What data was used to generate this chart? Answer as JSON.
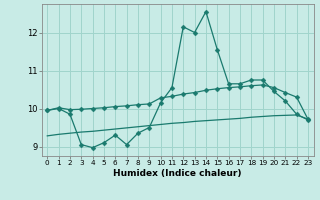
{
  "xlabel": "Humidex (Indice chaleur)",
  "background_color": "#c8ebe6",
  "grid_color": "#a0d4cc",
  "line_color": "#1a7a6e",
  "xlim": [
    -0.5,
    23.5
  ],
  "ylim": [
    8.75,
    12.75
  ],
  "xticks": [
    0,
    1,
    2,
    3,
    4,
    5,
    6,
    7,
    8,
    9,
    10,
    11,
    12,
    13,
    14,
    15,
    16,
    17,
    18,
    19,
    20,
    21,
    22,
    23
  ],
  "yticks": [
    9,
    10,
    11,
    12
  ],
  "line1_x": [
    0,
    1,
    2,
    3,
    4,
    5,
    6,
    7,
    8,
    9,
    10,
    11,
    12,
    13,
    14,
    15,
    16,
    17,
    18,
    19,
    20,
    21,
    22,
    23
  ],
  "line1_y": [
    9.95,
    10.0,
    9.85,
    9.05,
    8.97,
    9.1,
    9.3,
    9.05,
    9.35,
    9.5,
    10.15,
    10.55,
    12.15,
    12.0,
    12.55,
    11.55,
    10.65,
    10.65,
    10.75,
    10.75,
    10.45,
    10.2,
    9.85,
    9.7
  ],
  "line2_x": [
    0,
    1,
    2,
    3,
    4,
    5,
    6,
    7,
    8,
    9,
    10,
    11,
    12,
    13,
    14,
    15,
    16,
    17,
    18,
    19,
    20,
    21,
    22,
    23
  ],
  "line2_y": [
    9.95,
    10.02,
    9.97,
    9.98,
    10.0,
    10.02,
    10.05,
    10.07,
    10.1,
    10.12,
    10.28,
    10.32,
    10.38,
    10.42,
    10.48,
    10.52,
    10.55,
    10.57,
    10.6,
    10.62,
    10.55,
    10.42,
    10.3,
    9.72
  ],
  "line3_x": [
    0,
    1,
    2,
    3,
    4,
    5,
    6,
    7,
    8,
    9,
    10,
    11,
    12,
    13,
    14,
    15,
    16,
    17,
    18,
    19,
    20,
    21,
    22,
    23
  ],
  "line3_y": [
    9.28,
    9.32,
    9.35,
    9.38,
    9.4,
    9.43,
    9.46,
    9.49,
    9.52,
    9.55,
    9.58,
    9.61,
    9.63,
    9.66,
    9.68,
    9.7,
    9.72,
    9.74,
    9.77,
    9.79,
    9.81,
    9.82,
    9.83,
    9.72
  ]
}
